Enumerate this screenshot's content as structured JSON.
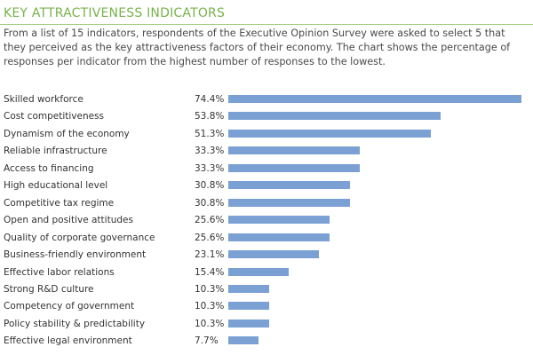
{
  "header": {
    "title": "KEY ATTRACTIVENESS INDICATORS",
    "description": "From a list of 15 indicators, respondents of the Executive Opinion Survey were asked to select 5 that they perceived as the key attractiveness factors of their economy. The chart shows the percentage of responses per indicator from the highest number of responses to the lowest."
  },
  "colors": {
    "title": "#78b24b",
    "bar": "#7aa0d4"
  },
  "chart_data": {
    "type": "bar",
    "orientation": "horizontal",
    "title": "KEY ATTRACTIVENESS INDICATORS",
    "xlabel": "",
    "ylabel": "",
    "unit": "%",
    "xlim": [
      0,
      74.4
    ],
    "categories": [
      "Skilled workforce",
      "Cost competitiveness",
      "Dynamism of the economy",
      "Reliable infrastructure",
      "Access to financing",
      "High educational level",
      "Competitive tax regime",
      "Open and positive attitudes",
      "Quality of corporate governance",
      "Business-friendly environment",
      "Effective labor relations",
      "Strong R&D culture",
      "Competency of government",
      "Policy stability & predictability",
      "Effective legal environment"
    ],
    "values": [
      74.4,
      53.8,
      51.3,
      33.3,
      33.3,
      30.8,
      30.8,
      25.6,
      25.6,
      23.1,
      15.4,
      10.3,
      10.3,
      10.3,
      7.7
    ],
    "value_labels": [
      "74.4%",
      "53.8%",
      "51.3%",
      "33.3%",
      "33.3%",
      "30.8%",
      "30.8%",
      "25.6%",
      "25.6%",
      "23.1%",
      "15.4%",
      "10.3%",
      "10.3%",
      "10.3%",
      "7.7%"
    ]
  }
}
